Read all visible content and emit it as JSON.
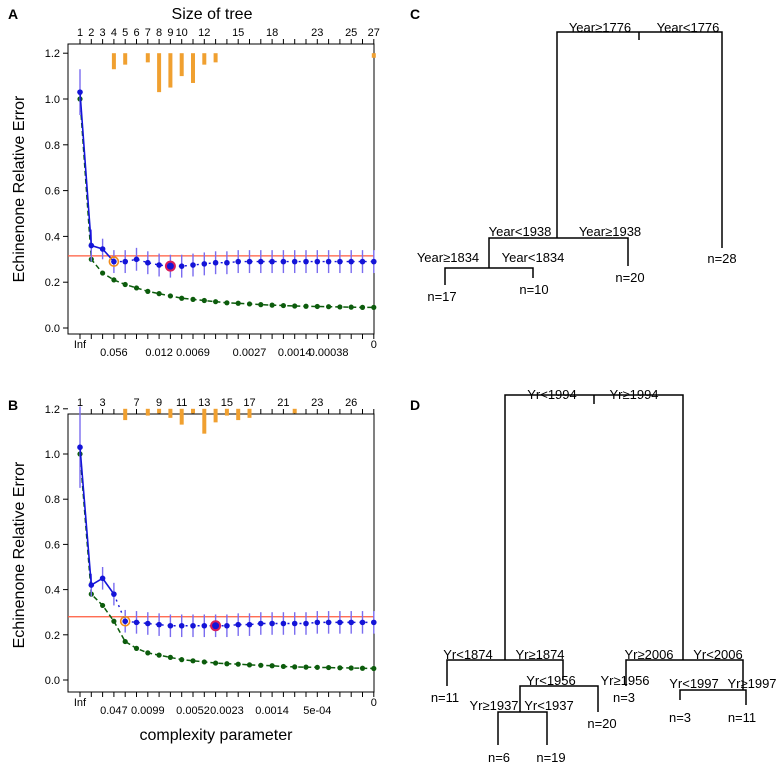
{
  "panels": {
    "A": {
      "letter": "A",
      "top_axis_title": "Size of tree",
      "top_ticks": [
        "1",
        "2",
        "3",
        "4",
        "5",
        "6",
        "7",
        "8",
        "9",
        "10",
        "12",
        "15",
        "18",
        "23",
        "25",
        "27"
      ],
      "bottom_ticks": [
        "Inf",
        "0.056",
        "0.012",
        "0.0069",
        "0.0027",
        "0.0014",
        "0.00038",
        "0"
      ],
      "y_title": "Echinenone Relative Error"
    },
    "B": {
      "letter": "B",
      "top_ticks": [
        "1",
        "3",
        "7",
        "9",
        "11",
        "13",
        "15",
        "17",
        "21",
        "23",
        "26"
      ],
      "bottom_ticks": [
        "Inf",
        "0.047",
        "0.0099",
        "0.0052",
        "0.0023",
        "0.0014",
        "5e-04",
        "0"
      ],
      "y_title": "Echinenone Relative Error",
      "x_title": "complexity parameter"
    },
    "C": {
      "letter": "C",
      "splits": [
        {
          "left": "Year≥1776",
          "right": "Year<1776"
        },
        {
          "left": "Year<1938",
          "right": "Year≥1938"
        },
        {
          "left": "Year≥1834",
          "right": "Year<1834"
        }
      ],
      "leaves": [
        "n=17",
        "n=10",
        "n=20",
        "n=28"
      ]
    },
    "D": {
      "letter": "D",
      "splits": [
        {
          "left": "Yr<1994",
          "right": "Yr≥1994"
        },
        {
          "left": "Yr<1874",
          "right": "Yr≥1874"
        },
        {
          "left": "Yr<1956",
          "right": "Yr≥1956"
        },
        {
          "left": "Yr≥1937",
          "right": "Yr<1937"
        },
        {
          "left": "Yr≥2006",
          "right": "Yr<2006"
        },
        {
          "left": "Yr<1997",
          "right": "Yr≥1997"
        }
      ],
      "leaves": [
        "n=11",
        "n=6",
        "n=19",
        "n=20",
        "n=3",
        "n=3",
        "n=11"
      ]
    }
  },
  "colors": {
    "cv": "#1414d8",
    "cv_err": "#7a6cf0",
    "resub": "#0c5c0c",
    "hline": "#ff5a3c",
    "bars": "#f0a030",
    "highlight": "#d81e5a",
    "chosen": "#f08c1e"
  },
  "chart_data": [
    {
      "type": "line",
      "panel": "A",
      "title": "",
      "top_axis_title": "Size of tree",
      "ylabel": "Echinenone Relative Error",
      "xlabel": "",
      "ylim": [
        0.0,
        1.25
      ],
      "yticks": [
        0.0,
        0.2,
        0.4,
        0.6,
        0.8,
        1.0,
        1.2
      ],
      "n_points": 27,
      "series": [
        {
          "name": "cross-validated relative error",
          "values": [
            1.03,
            0.36,
            0.345,
            0.29,
            0.29,
            0.3,
            0.285,
            0.275,
            0.27,
            0.27,
            0.275,
            0.28,
            0.285,
            0.285,
            0.29,
            0.29,
            0.29,
            0.29,
            0.29,
            0.29,
            0.29,
            0.29,
            0.29,
            0.29,
            0.29,
            0.29,
            0.29
          ]
        },
        {
          "name": "cv error bar half-width",
          "values": [
            0.1,
            0.07,
            0.045,
            0.05,
            0.05,
            0.05,
            0.05,
            0.05,
            0.05,
            0.05,
            0.05,
            0.05,
            0.05,
            0.05,
            0.05,
            0.05,
            0.05,
            0.05,
            0.05,
            0.05,
            0.05,
            0.05,
            0.05,
            0.05,
            0.05,
            0.05,
            0.05
          ]
        },
        {
          "name": "resubstitution relative error",
          "values": [
            1.0,
            0.3,
            0.24,
            0.21,
            0.19,
            0.175,
            0.16,
            0.15,
            0.14,
            0.13,
            0.125,
            0.12,
            0.115,
            0.11,
            0.108,
            0.105,
            0.102,
            0.1,
            0.098,
            0.096,
            0.095,
            0.094,
            0.093,
            0.092,
            0.091,
            0.09,
            0.09
          ]
        },
        {
          "name": "importance bars (bottom value, top at 1.2)",
          "values": [
            null,
            null,
            null,
            1.13,
            1.15,
            null,
            1.16,
            1.03,
            1.05,
            1.1,
            1.07,
            1.15,
            1.16,
            null,
            null,
            null,
            null,
            null,
            null,
            null,
            null,
            null,
            null,
            null,
            null,
            null,
            1.18
          ]
        }
      ],
      "reference_line": 0.315,
      "chosen_index": 3,
      "min_index": 8
    },
    {
      "type": "line",
      "panel": "B",
      "title": "",
      "ylabel": "Echinenone Relative Error",
      "xlabel": "complexity parameter",
      "ylim": [
        0.0,
        1.25
      ],
      "yticks": [
        0.0,
        0.2,
        0.4,
        0.6,
        0.8,
        1.0,
        1.2
      ],
      "n_points": 27,
      "series": [
        {
          "name": "cross-validated relative error",
          "values": [
            1.03,
            0.42,
            0.45,
            0.38,
            0.26,
            0.255,
            0.25,
            0.245,
            0.24,
            0.24,
            0.24,
            0.24,
            0.24,
            0.24,
            0.245,
            0.245,
            0.25,
            0.25,
            0.25,
            0.25,
            0.25,
            0.255,
            0.255,
            0.255,
            0.255,
            0.255,
            0.255
          ]
        },
        {
          "name": "cv error bar half-width",
          "values": [
            0.18,
            0.05,
            0.05,
            0.05,
            0.05,
            0.05,
            0.05,
            0.05,
            0.05,
            0.05,
            0.05,
            0.05,
            0.05,
            0.05,
            0.05,
            0.05,
            0.05,
            0.05,
            0.05,
            0.05,
            0.05,
            0.05,
            0.05,
            0.05,
            0.05,
            0.05,
            0.05
          ]
        },
        {
          "name": "resubstitution relative error",
          "values": [
            1.0,
            0.38,
            0.33,
            0.26,
            0.17,
            0.14,
            0.12,
            0.11,
            0.1,
            0.09,
            0.085,
            0.08,
            0.075,
            0.072,
            0.07,
            0.067,
            0.065,
            0.063,
            0.06,
            0.058,
            0.057,
            0.056,
            0.055,
            0.054,
            0.053,
            0.052,
            0.051
          ]
        },
        {
          "name": "importance bars (bottom value, top at 1.2)",
          "values": [
            null,
            null,
            null,
            null,
            1.15,
            null,
            1.17,
            1.18,
            1.16,
            1.13,
            1.18,
            1.09,
            1.14,
            1.17,
            1.15,
            1.16,
            null,
            null,
            null,
            1.18,
            null,
            null,
            null,
            null,
            null,
            null,
            null
          ]
        }
      ],
      "reference_line": 0.28,
      "chosen_index": 4,
      "min_index": 12
    }
  ]
}
